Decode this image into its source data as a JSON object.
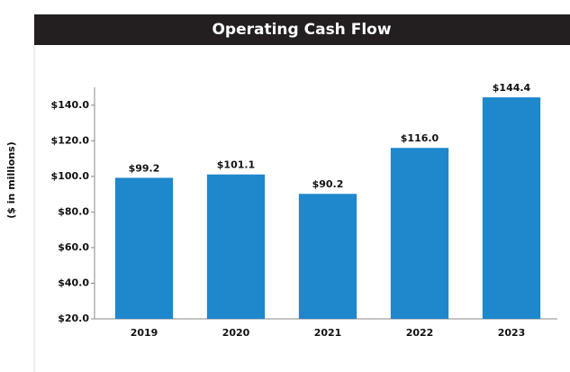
{
  "chart_data": {
    "type": "bar",
    "title": "Operating Cash Flow",
    "ylabel": "($ in millions)",
    "categories": [
      "2019",
      "2020",
      "2021",
      "2022",
      "2023"
    ],
    "values": [
      99.2,
      101.1,
      90.2,
      116.0,
      144.4
    ],
    "value_labels": [
      "$99.2",
      "$101.1",
      "$90.2",
      "$116.0",
      "$144.4"
    ],
    "color": "#1f87cc",
    "ylim": [
      20,
      150
    ],
    "yticks": [
      {
        "value": 20,
        "label": "$20.0"
      },
      {
        "value": 40,
        "label": "$40.0"
      },
      {
        "value": 60,
        "label": "$60.0"
      },
      {
        "value": 80,
        "label": "$80.0"
      },
      {
        "value": 100,
        "label": "$100.0"
      },
      {
        "value": 120,
        "label": "$120.0"
      },
      {
        "value": 140,
        "label": "$140.0"
      }
    ]
  }
}
